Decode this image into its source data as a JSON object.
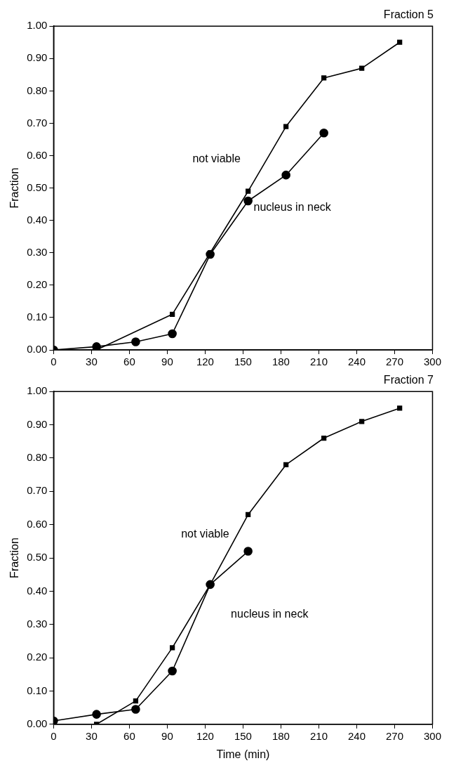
{
  "chart_data": [
    {
      "type": "line",
      "title": "Fraction 5",
      "ylabel": "Fraction",
      "xlim": [
        0,
        300
      ],
      "xticks": [
        0,
        30,
        60,
        90,
        120,
        150,
        180,
        210,
        240,
        270,
        300
      ],
      "ylim": [
        0,
        1
      ],
      "yticks": [
        {
          "value": 0,
          "label": "0.00"
        },
        {
          "value": 0.1,
          "label": "0.10"
        },
        {
          "value": 0.2,
          "label": "0.20"
        },
        {
          "value": 0.3,
          "label": "0.30"
        },
        {
          "value": 0.4,
          "label": "0.40"
        },
        {
          "value": 0.5,
          "label": "0.50"
        },
        {
          "value": 0.6,
          "label": "0.60"
        },
        {
          "value": 0.7,
          "label": "0.70"
        },
        {
          "value": 0.8,
          "label": "0.80"
        },
        {
          "value": 0.9,
          "label": "0.90"
        },
        {
          "value": 1,
          "label": "1.00"
        }
      ],
      "grid": false,
      "legend": false,
      "series": [
        {
          "name": "not viable",
          "color": "#000000",
          "marker": "square",
          "x": [
            34,
            94,
            124,
            154,
            184,
            214,
            244,
            274
          ],
          "values": [
            0.0,
            0.11,
            0.3,
            0.49,
            0.69,
            0.84,
            0.87,
            0.95
          ]
        },
        {
          "name": "nucleus in neck",
          "color": "#000000",
          "marker": "circle",
          "x": [
            0,
            34,
            65,
            94,
            124,
            154,
            184,
            214
          ],
          "values": [
            0.0,
            0.01,
            0.025,
            0.05,
            0.295,
            0.46,
            0.54,
            0.67
          ]
        }
      ]
    },
    {
      "type": "line",
      "title": "Fraction 7",
      "xlabel": "Time (min)",
      "ylabel": "Fraction",
      "xlim": [
        0,
        300
      ],
      "xticks": [
        0,
        30,
        60,
        90,
        120,
        150,
        180,
        210,
        240,
        270,
        300
      ],
      "ylim": [
        0,
        1
      ],
      "yticks": [
        {
          "value": 0,
          "label": "0.00"
        },
        {
          "value": 0.1,
          "label": "0.10"
        },
        {
          "value": 0.2,
          "label": "0.20"
        },
        {
          "value": 0.3,
          "label": "0.30"
        },
        {
          "value": 0.4,
          "label": "0.40"
        },
        {
          "value": 0.5,
          "label": "0.50"
        },
        {
          "value": 0.6,
          "label": "0.60"
        },
        {
          "value": 0.7,
          "label": "0.70"
        },
        {
          "value": 0.8,
          "label": "0.80"
        },
        {
          "value": 0.9,
          "label": "0.90"
        },
        {
          "value": 1,
          "label": "1.00"
        }
      ],
      "grid": false,
      "legend": false,
      "series": [
        {
          "name": "not viable",
          "color": "#000000",
          "marker": "square",
          "x": [
            34,
            65,
            94,
            124,
            154,
            184,
            214,
            244,
            274
          ],
          "values": [
            0.0,
            0.07,
            0.23,
            0.42,
            0.63,
            0.78,
            0.86,
            0.91,
            0.95
          ]
        },
        {
          "name": "nucleus in neck",
          "color": "#000000",
          "marker": "circle",
          "x": [
            0,
            34,
            65,
            94,
            124,
            154
          ],
          "values": [
            0.01,
            0.03,
            0.045,
            0.16,
            0.42,
            0.52
          ]
        }
      ]
    }
  ]
}
